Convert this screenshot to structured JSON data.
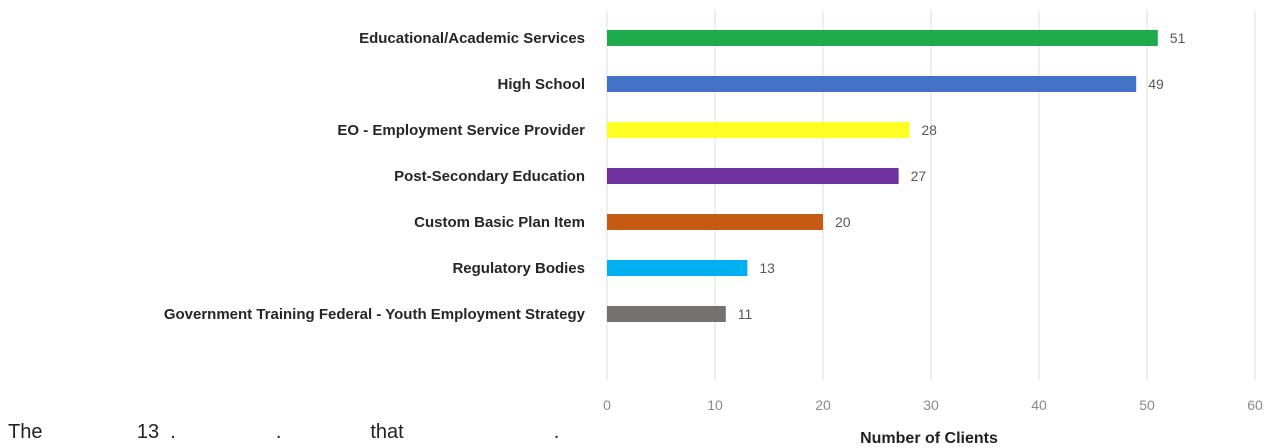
{
  "chart_data": {
    "type": "bar",
    "orientation": "horizontal",
    "title": "",
    "xlabel": "Number of Clients",
    "ylabel": "",
    "xlim": [
      0,
      60
    ],
    "xticks": [
      0,
      10,
      20,
      30,
      40,
      50,
      60
    ],
    "grid": "vertical",
    "legend": "none",
    "categories": [
      "Educational/Academic Services",
      "High School",
      "EO - Employment Service Provider",
      "Post-Secondary Education",
      "Custom Basic Plan Item",
      "Regulatory Bodies",
      "Government Training Federal - Youth Employment Strategy"
    ],
    "values": [
      51,
      49,
      28,
      27,
      20,
      13,
      11
    ],
    "colors": [
      "#1faa4b",
      "#4472c4",
      "#ffff24",
      "#7030a0",
      "#c55a11",
      "#00b0f0",
      "#767171"
    ]
  },
  "caption": "The                 13  .                  .                that                           ."
}
